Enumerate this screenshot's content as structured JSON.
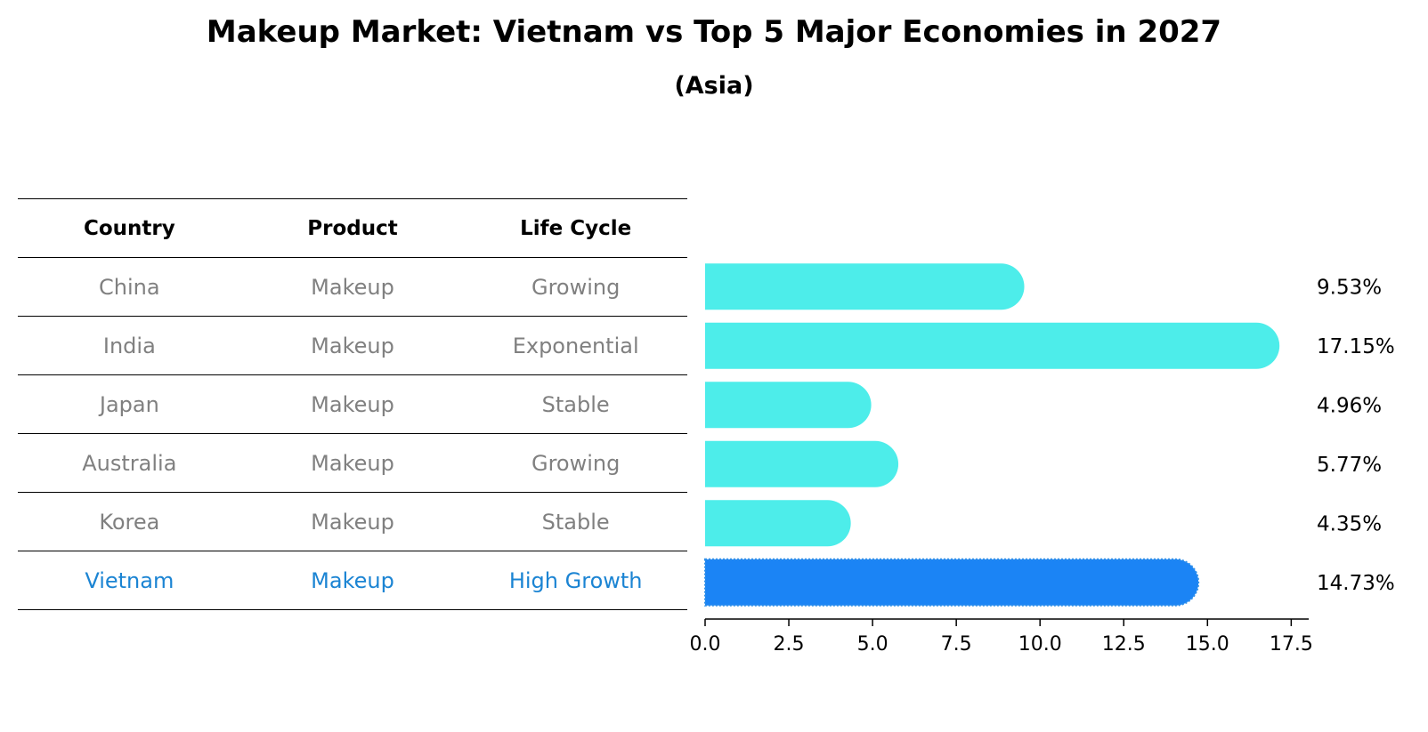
{
  "title": "Makeup Market: Vietnam vs Top 5 Major Economies in 2027",
  "subtitle": "(Asia)",
  "table": {
    "headers": [
      "Country",
      "Product",
      "Life Cycle"
    ],
    "rows": [
      [
        "China",
        "Makeup",
        "Growing"
      ],
      [
        "India",
        "Makeup",
        "Exponential"
      ],
      [
        "Japan",
        "Makeup",
        "Stable"
      ],
      [
        "Australia",
        "Makeup",
        "Growing"
      ],
      [
        "Korea",
        "Makeup",
        "Stable"
      ],
      [
        "Vietnam",
        "Makeup",
        "High Growth"
      ]
    ]
  },
  "colors": {
    "bar": "#4dedea",
    "highlight": "#1b84f5",
    "highlight_text": "#1b84d3",
    "muted_text": "#808080"
  },
  "chart_data": {
    "type": "bar",
    "orientation": "horizontal",
    "title": "Makeup Market: Vietnam vs Top 5 Major Economies in 2027",
    "subtitle": "(Asia)",
    "categories": [
      "China",
      "India",
      "Japan",
      "Australia",
      "Korea",
      "Vietnam"
    ],
    "values": [
      9.53,
      17.15,
      4.96,
      5.77,
      4.35,
      14.73
    ],
    "labels": [
      "9.53%",
      "17.15%",
      "4.96%",
      "5.77%",
      "4.35%",
      "14.73%"
    ],
    "highlight": "Vietnam",
    "xlim": [
      0,
      18
    ],
    "xticks": [
      0.0,
      2.5,
      5.0,
      7.5,
      10.0,
      12.5,
      15.0,
      17.5
    ],
    "xtick_labels": [
      "0.0",
      "2.5",
      "5.0",
      "7.5",
      "10.0",
      "12.5",
      "15.0",
      "17.5"
    ],
    "xlabel": "",
    "ylabel": ""
  }
}
